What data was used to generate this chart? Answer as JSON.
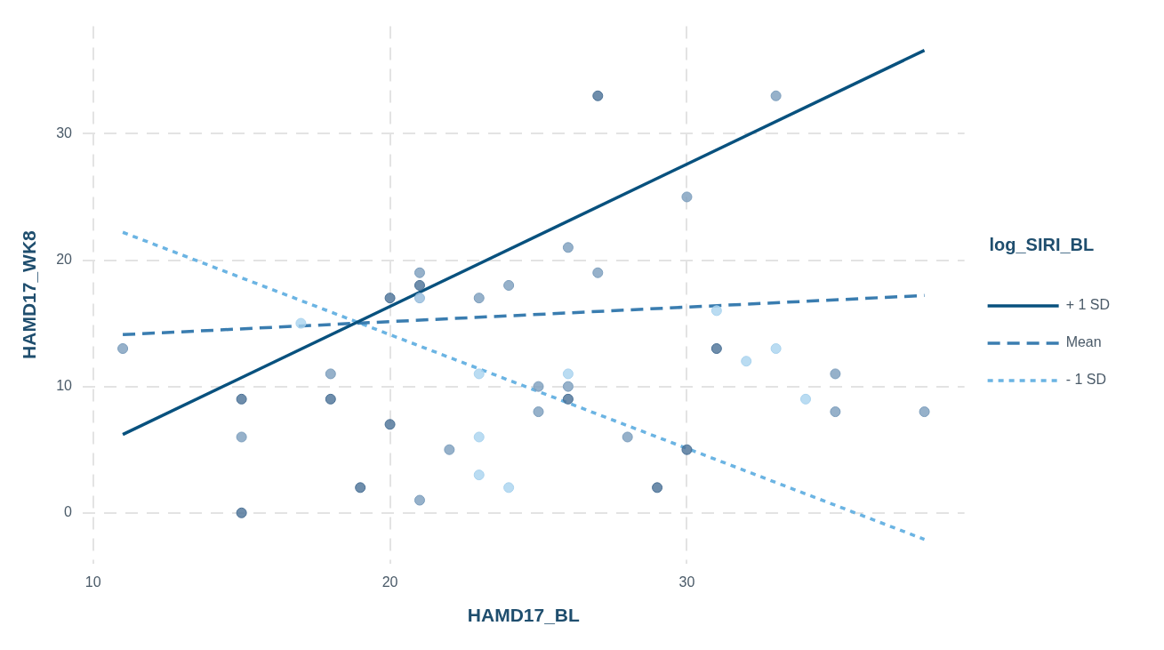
{
  "chart_data": {
    "type": "scatter",
    "xlabel": "HAMD17_BL",
    "ylabel": "HAMD17_WK8",
    "legend_title": "log_SIRI_BL",
    "xlim": [
      9.65,
      39.35
    ],
    "ylim": [
      -4,
      38.5
    ],
    "xticks": [
      10,
      20,
      30
    ],
    "yticks": [
      0,
      10,
      20,
      30
    ],
    "grid": true,
    "legend": "right",
    "series": [
      {
        "type": "scatter",
        "marker": "circle",
        "x": [
          11,
          15,
          15,
          15,
          17,
          18,
          18,
          19,
          20,
          20,
          21,
          21,
          21,
          21,
          22,
          23,
          23,
          23,
          23,
          24,
          24,
          25,
          25,
          26,
          26,
          26,
          26,
          27,
          27,
          28,
          29,
          30,
          30,
          31,
          31,
          32,
          33,
          33,
          34,
          35,
          35,
          38
        ],
        "values": [
          13,
          9,
          6,
          0,
          15,
          11,
          9,
          2,
          17,
          7,
          19,
          18,
          17,
          1,
          5,
          17,
          11,
          6,
          3,
          18,
          2,
          10,
          8,
          21,
          11,
          10,
          9,
          33,
          19,
          6,
          2,
          25,
          5,
          16,
          13,
          12,
          33,
          13,
          9,
          11,
          8,
          8
        ],
        "colors": [
          "#7c9ebd",
          "#4a7196",
          "#7c9ebd",
          "#4a7196",
          "#a9d3ef",
          "#7c9ebd",
          "#4a7196",
          "#4a7196",
          "#4a7196",
          "#4a7196",
          "#7c9ebd",
          "#4a7196",
          "#95bcdc",
          "#7c9ebd",
          "#7c9ebd",
          "#7c9ebd",
          "#a9d3ef",
          "#a9d3ef",
          "#a9d3ef",
          "#7c9ebd",
          "#a9d3ef",
          "#7c9ebd",
          "#7c9ebd",
          "#7c9ebd",
          "#a9d3ef",
          "#7c9ebd",
          "#4a7196",
          "#4a7196",
          "#7c9ebd",
          "#7c9ebd",
          "#4a7196",
          "#7c9ebd",
          "#4a7196",
          "#a9d3ef",
          "#4a7196",
          "#a9d3ef",
          "#7c9ebd",
          "#a9d3ef",
          "#a9d3ef",
          "#7c9ebd",
          "#7c9ebd",
          "#7c9ebd"
        ]
      },
      {
        "type": "line",
        "name": "+ 1 SD",
        "color": "#08517e",
        "line_style": "solid",
        "marker": "none",
        "x": [
          11,
          38
        ],
        "values": [
          6.2,
          36.6
        ]
      },
      {
        "type": "line",
        "name": "Mean",
        "color": "#3a7db0",
        "line_style": "dashed",
        "marker": "none",
        "x": [
          11,
          38
        ],
        "values": [
          14.1,
          17.2
        ]
      },
      {
        "type": "line",
        "name": "- 1 SD",
        "color": "#6bb4e3",
        "line_style": "dotted",
        "marker": "none",
        "x": [
          11,
          38
        ],
        "values": [
          22.2,
          -2.1
        ]
      }
    ]
  }
}
